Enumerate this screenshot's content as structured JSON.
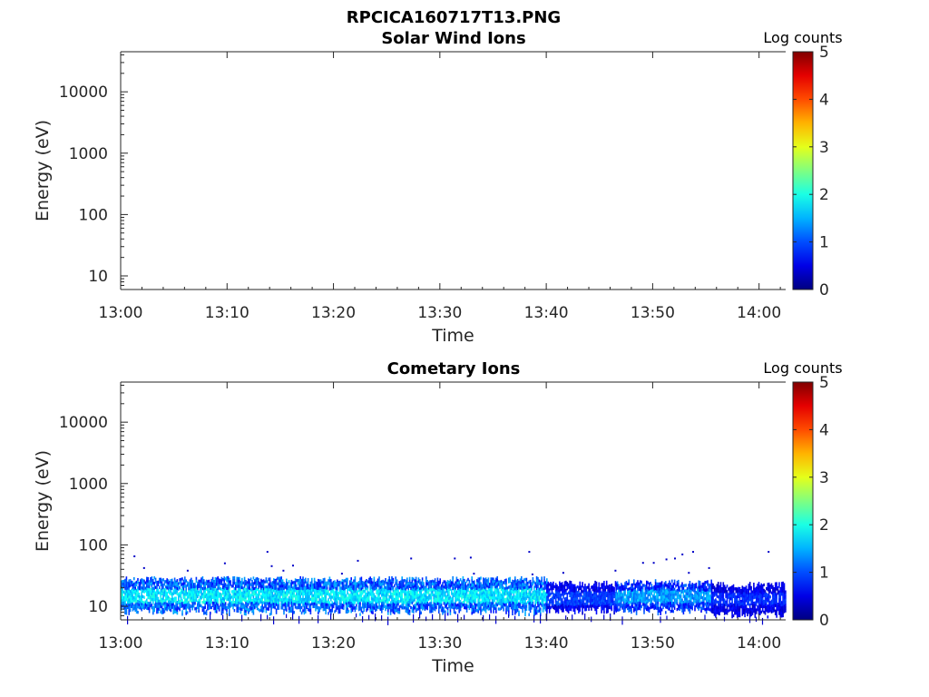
{
  "figure_title": "RPCICA160717T13.PNG",
  "colormap": "jet",
  "chart_data": [
    {
      "type": "heatmap",
      "title": "Solar Wind Ions",
      "xlabel": "Time",
      "ylabel": "Energy (eV)",
      "x_tick_labels": [
        "13:00",
        "13:10",
        "13:20",
        "13:30",
        "13:40",
        "13:50",
        "14:00"
      ],
      "x_range_minutes": [
        0,
        62.5
      ],
      "y_scale": "log",
      "y_tick_values": [
        10,
        100,
        1000,
        10000
      ],
      "y_tick_labels": [
        "10",
        "100",
        "1000",
        "10000"
      ],
      "y_range": [
        6,
        45000
      ],
      "colorbar": {
        "label": "Log counts",
        "range": [
          0,
          5
        ],
        "tick_labels": [
          "0",
          "1",
          "2",
          "3",
          "4",
          "5"
        ]
      },
      "bands": [],
      "sparse_points": []
    },
    {
      "type": "heatmap",
      "title": "Cometary Ions",
      "xlabel": "Time",
      "ylabel": "Energy (eV)",
      "x_tick_labels": [
        "13:00",
        "13:10",
        "13:20",
        "13:30",
        "13:40",
        "13:50",
        "14:00"
      ],
      "x_range_minutes": [
        0,
        62.5
      ],
      "y_scale": "log",
      "y_tick_values": [
        10,
        100,
        1000,
        10000
      ],
      "y_tick_labels": [
        "10",
        "100",
        "1000",
        "10000"
      ],
      "y_range": [
        6,
        45000
      ],
      "colorbar": {
        "label": "Log counts",
        "range": [
          0,
          5
        ],
        "tick_labels": [
          "0",
          "1",
          "2",
          "3",
          "4",
          "5"
        ]
      },
      "bands": [
        {
          "t_start": 0,
          "t_end": 40,
          "e_low": 9,
          "e_high": 27,
          "peak_level": 1.9,
          "core_low": 12,
          "core_high": 20
        },
        {
          "t_start": 40,
          "t_end": 46.5,
          "e_low": 9,
          "e_high": 23,
          "peak_level": 1.0,
          "core_low": 11,
          "core_high": 18
        },
        {
          "t_start": 46.5,
          "t_end": 55.5,
          "e_low": 9,
          "e_high": 24,
          "peak_level": 1.5,
          "core_low": 12,
          "core_high": 19
        },
        {
          "t_start": 55.5,
          "t_end": 62.5,
          "e_low": 8,
          "e_high": 22,
          "peak_level": 0.9,
          "core_low": 11,
          "core_high": 17
        }
      ],
      "sparse_points": [
        {
          "t": 1.3,
          "e": 65
        },
        {
          "t": 2.2,
          "e": 42
        },
        {
          "t": 6.3,
          "e": 38
        },
        {
          "t": 9.8,
          "e": 50
        },
        {
          "t": 13.8,
          "e": 77
        },
        {
          "t": 14.2,
          "e": 45
        },
        {
          "t": 15.3,
          "e": 38
        },
        {
          "t": 16.2,
          "e": 46
        },
        {
          "t": 20.8,
          "e": 34
        },
        {
          "t": 22.3,
          "e": 55
        },
        {
          "t": 27.3,
          "e": 60
        },
        {
          "t": 31.4,
          "e": 60
        },
        {
          "t": 32.9,
          "e": 62
        },
        {
          "t": 33.2,
          "e": 34
        },
        {
          "t": 38.4,
          "e": 77
        },
        {
          "t": 38.7,
          "e": 33
        },
        {
          "t": 41.6,
          "e": 35
        },
        {
          "t": 46.5,
          "e": 38
        },
        {
          "t": 49.1,
          "e": 51
        },
        {
          "t": 50.1,
          "e": 51
        },
        {
          "t": 51.3,
          "e": 58
        },
        {
          "t": 52.1,
          "e": 60
        },
        {
          "t": 52.8,
          "e": 70
        },
        {
          "t": 53.8,
          "e": 77
        },
        {
          "t": 53.4,
          "e": 35
        },
        {
          "t": 55.3,
          "e": 42
        },
        {
          "t": 60.9,
          "e": 77
        }
      ]
    }
  ]
}
